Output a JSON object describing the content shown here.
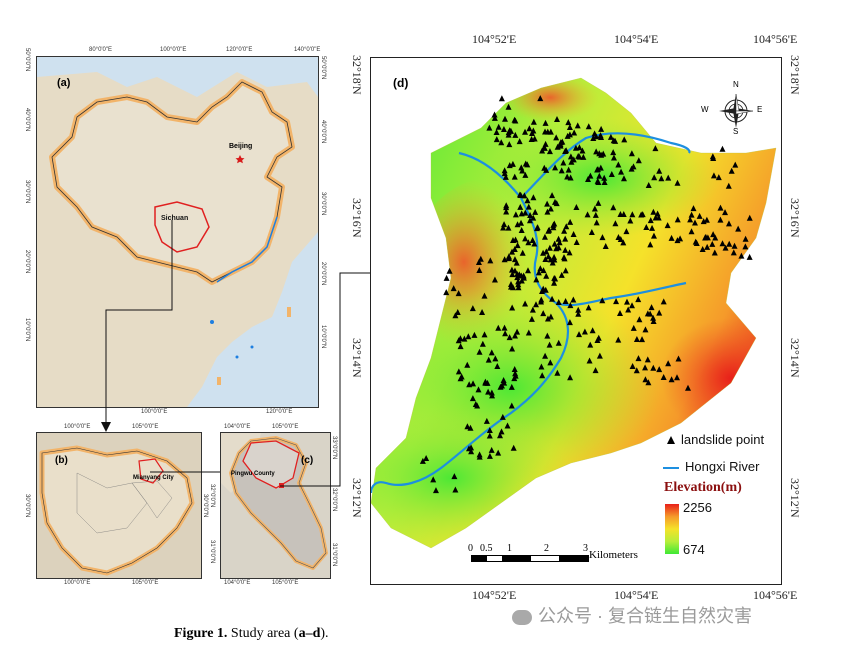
{
  "panel_a": {
    "label": "(a)",
    "top_ticks": [
      "80°0'0\"E",
      "100°0'0\"E",
      "120°0'0\"E",
      "140°0'0\"E"
    ],
    "bottom_ticks": [
      "100°0'0\"E",
      "120°0'0\"E"
    ],
    "left_ticks": [
      "50°0'0\"N",
      "40°0'0\"N",
      "30°0'0\"N",
      "20°0'0\"N",
      "10°0'0\"N"
    ],
    "right_ticks": [
      "50°0'0\"N",
      "40°0'0\"N",
      "30°0'0\"N",
      "20°0'0\"N",
      "10°0'0\"N"
    ],
    "beijing": "Beijing",
    "sichuan": "Sichuan"
  },
  "panel_b": {
    "label": "(b)",
    "top_ticks": [
      "100°0'0\"E",
      "105°0'0\"E"
    ],
    "bottom_ticks": [
      "100°0'0\"E",
      "105°0'0\"E"
    ],
    "left_ticks": [
      "30°0'0\"N"
    ],
    "right_ticks": [
      "30°0'0\"N"
    ],
    "city": "Mianyang City"
  },
  "panel_c": {
    "label": "(c)",
    "top_ticks": [
      "104°0'0\"E",
      "105°0'0\"E"
    ],
    "bottom_ticks": [
      "104°0'0\"E",
      "105°0'0\"E"
    ],
    "left_ticks": [
      "32°0'0\"N",
      "31°0'0\"N"
    ],
    "right_ticks": [
      "33°0'0\"N",
      "32°0'0\"N",
      "31°0'0\"N"
    ],
    "county": "Pingwu County"
  },
  "panel_d": {
    "label": "(d)",
    "top_ticks": [
      "104°52'E",
      "104°54'E",
      "104°56'E"
    ],
    "bottom_ticks": [
      "104°52'E",
      "104°54'E",
      "104°56'E"
    ],
    "left_ticks": [
      "32°18'N",
      "32°16'N",
      "32°14'N",
      "32°12'N"
    ],
    "right_ticks": [
      "32°18'N",
      "32°16'N",
      "32°14'N",
      "32°12'N"
    ],
    "compass": {
      "n": "N",
      "s": "S",
      "e": "E",
      "w": "W"
    },
    "legend": {
      "landslide": "landslide point",
      "river": "Hongxi River",
      "elevation_title": "Elevation(m)",
      "elev_max": "2256",
      "elev_min": "674"
    },
    "scale_labels": [
      "0",
      "0.5",
      "1",
      "2",
      "3"
    ],
    "scale_unit": "Kilometers",
    "colors": {
      "high": "#e8201a",
      "mid": "#f5e22a",
      "low": "#3ee835",
      "river": "#1d8fe0",
      "point": "#000000"
    }
  },
  "caption": {
    "prefix": "Figure 1.",
    "text": " Study area (",
    "bold": "a–d",
    "suffix": ")."
  },
  "watermark": "公众号 · 复合链生自然灾害"
}
